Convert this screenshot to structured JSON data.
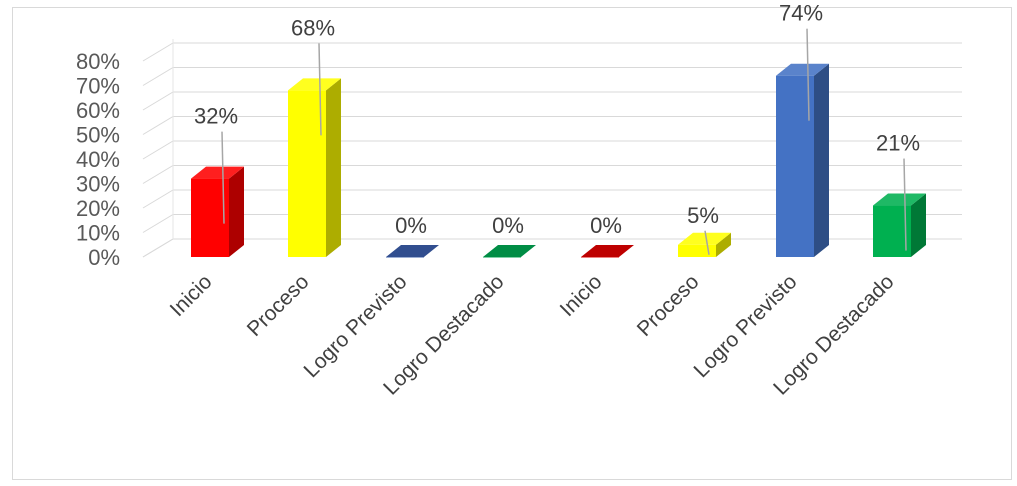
{
  "chart_data": {
    "type": "bar",
    "categories": [
      "Inicio",
      "Proceso",
      "Logro Previsto",
      "Logro Destacado",
      "Inicio",
      "Proceso",
      "Logro Previsto",
      "Logro Destacado"
    ],
    "values": [
      32,
      68,
      0,
      0,
      0,
      5,
      74,
      21
    ],
    "data_labels": [
      "32%",
      "68%",
      "0%",
      "0%",
      "0%",
      "5%",
      "74%",
      "21%"
    ],
    "colors": [
      "#ff0000",
      "#ffff00",
      "#3a5ca8",
      "#00a651",
      "#e00000",
      "#ffff00",
      "#4472c4",
      "#00b050"
    ],
    "y_ticks": [
      "0%",
      "10%",
      "20%",
      "30%",
      "40%",
      "50%",
      "60%",
      "70%",
      "80%"
    ],
    "ylim": [
      0,
      80
    ],
    "grid": true,
    "legend": "none",
    "style": "3d"
  }
}
